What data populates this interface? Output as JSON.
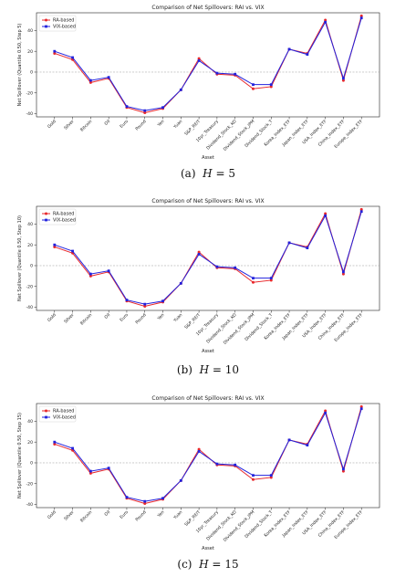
{
  "series_styles": {
    "ra": {
      "name": "RA-based",
      "color": "#e8272b",
      "marker": "circle"
    },
    "vix": {
      "name": "VIX-based",
      "color": "#2222dd",
      "marker": "square"
    }
  },
  "chart_data": [
    {
      "type": "line",
      "title": "Comparison of Net Spillovers: RAI vs. VIX",
      "xlabel": "Asset",
      "ylabel": "Net Spillover (Quantile 0.50, Step 5)",
      "caption_label": "(a)",
      "caption_value": "5",
      "categories": [
        "Gold",
        "Silver",
        "Bitcoin",
        "Oil",
        "Euro",
        "Pound",
        "Yen",
        "Yuan",
        "S&P_REIT",
        "10yr_Treasury",
        "Dividend_Stock_KO",
        "Dividend_Stock_JPM",
        "Dividend_Stock_T",
        "Korea_Index_ETF",
        "Japan_Index_ETF",
        "USA_Index_ETF",
        "China_Index_ETF",
        "Europe_Index_ETF"
      ],
      "yticks": [
        -40,
        -20,
        0,
        20,
        40
      ],
      "ylim": [
        -43,
        57
      ],
      "grid": false,
      "zero_line": true,
      "legend": "top-left",
      "series": [
        {
          "name": "RA-based",
          "values": [
            18,
            12,
            -10,
            -6,
            -34,
            -39,
            -35,
            -17,
            13,
            -2,
            -3,
            -16,
            -14,
            22,
            18,
            50,
            -8,
            54
          ]
        },
        {
          "name": "VIX-based",
          "values": [
            20,
            14,
            -8,
            -5,
            -33,
            -37,
            -34,
            -17,
            11,
            -1,
            -2,
            -12,
            -12,
            22,
            17,
            48,
            -6,
            52
          ]
        }
      ]
    },
    {
      "type": "line",
      "title": "Comparison of Net Spillovers: RAI vs. VIX",
      "xlabel": "Asset",
      "ylabel": "Net Spillover (Quantile 0.50, Step 10)",
      "caption_label": "(b)",
      "caption_value": "10",
      "categories": [
        "Gold",
        "Silver",
        "Bitcoin",
        "Oil",
        "Euro",
        "Pound",
        "Yen",
        "Yuan",
        "S&P_REIT",
        "10yr_Treasury",
        "Dividend_Stock_KO",
        "Dividend_Stock_JPM",
        "Dividend_Stock_T",
        "Korea_Index_ETF",
        "Japan_Index_ETF",
        "USA_Index_ETF",
        "China_Index_ETF",
        "Europe_Index_ETF"
      ],
      "yticks": [
        -40,
        -20,
        0,
        20,
        40
      ],
      "ylim": [
        -43,
        57
      ],
      "grid": false,
      "zero_line": true,
      "legend": "top-left",
      "series": [
        {
          "name": "RA-based",
          "values": [
            18,
            12,
            -10,
            -6,
            -34,
            -39,
            -35,
            -17,
            13,
            -2,
            -3,
            -16,
            -14,
            22,
            18,
            50,
            -8,
            54
          ]
        },
        {
          "name": "VIX-based",
          "values": [
            20,
            14,
            -8,
            -5,
            -33,
            -37,
            -34,
            -17,
            11,
            -1,
            -2,
            -12,
            -12,
            22,
            17,
            48,
            -6,
            52
          ]
        }
      ]
    },
    {
      "type": "line",
      "title": "Comparison of Net Spillovers: RAI vs. VIX",
      "xlabel": "Asset",
      "ylabel": "Net Spillover (Quantile 0.50, Step 15)",
      "caption_label": "(c)",
      "caption_value": "15",
      "categories": [
        "Gold",
        "Silver",
        "Bitcoin",
        "Oil",
        "Euro",
        "Pound",
        "Yen",
        "Yuan",
        "S&P_REIT",
        "10yr_Treasury",
        "Dividend_Stock_KO",
        "Dividend_Stock_JPM",
        "Dividend_Stock_T",
        "Korea_Index_ETF",
        "Japan_Index_ETF",
        "USA_Index_ETF",
        "China_Index_ETF",
        "Europe_Index_ETF"
      ],
      "yticks": [
        -40,
        -20,
        0,
        20,
        40
      ],
      "ylim": [
        -43,
        57
      ],
      "grid": false,
      "zero_line": true,
      "legend": "top-left",
      "series": [
        {
          "name": "RA-based",
          "values": [
            18,
            12,
            -10,
            -6,
            -34,
            -39,
            -35,
            -17,
            13,
            -2,
            -3,
            -16,
            -14,
            22,
            18,
            50,
            -8,
            54
          ]
        },
        {
          "name": "VIX-based",
          "values": [
            20,
            14,
            -8,
            -5,
            -33,
            -37,
            -34,
            -17,
            11,
            -1,
            -2,
            -12,
            -12,
            22,
            17,
            48,
            -6,
            52
          ]
        }
      ]
    }
  ]
}
